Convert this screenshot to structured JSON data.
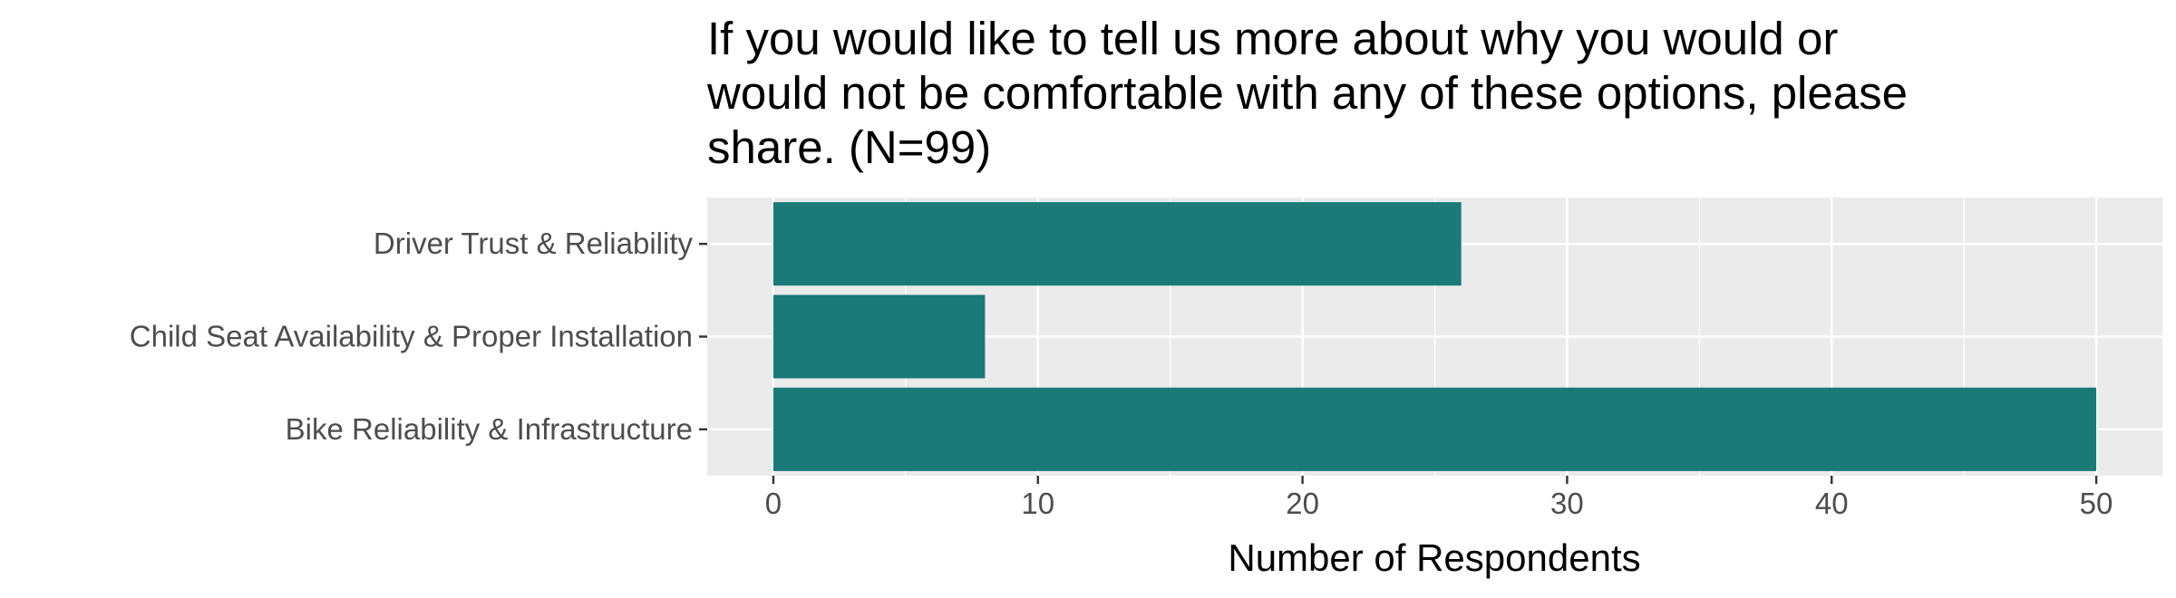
{
  "chart_data": {
    "type": "bar",
    "orientation": "horizontal",
    "title": "If you would like to tell us more about why you would or would not be comfortable with any of these options, please share. (N=99)",
    "title_lines": [
      "If you would like to tell us more about why you would or",
      "would not be comfortable with any of these options, please",
      "share. (N=99)"
    ],
    "categories": [
      "Driver Trust & Reliability",
      "Child Seat Availability & Proper Installation",
      "Bike Reliability & Infrastructure"
    ],
    "values": [
      26,
      8,
      50
    ],
    "xlabel": "Number of Respondents",
    "ylabel": "",
    "xlim": [
      -2.5,
      52.5
    ],
    "x_ticks": [
      0,
      10,
      20,
      30,
      40,
      50
    ],
    "grid": true,
    "legend": "none",
    "colors": {
      "bar": "#1a7a78",
      "panel": "#ebebeb",
      "grid": "#ffffff",
      "text": "#4d4d4d"
    }
  }
}
